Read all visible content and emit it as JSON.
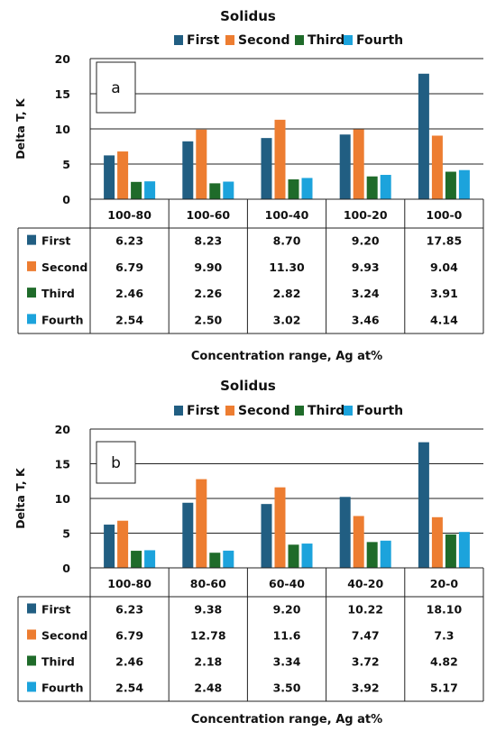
{
  "colors": {
    "First": "#215e82",
    "Second": "#ed7d31",
    "Third": "#1f6b2a",
    "Fourth": "#1ca3dc"
  },
  "chart_data": [
    {
      "type": "bar",
      "panel": "a",
      "title": "Solidus",
      "ylabel": "Delta T, K",
      "xlabel": "Concentration range, Ag at%",
      "ylim": [
        0,
        20
      ],
      "yticks": [
        0,
        5,
        10,
        15,
        20
      ],
      "grid": true,
      "legend": "top",
      "categories": [
        "100-80",
        "100-60",
        "100-40",
        "100-20",
        "100-0"
      ],
      "series": [
        {
          "name": "First",
          "values": [
            6.23,
            8.23,
            8.7,
            9.2,
            17.85
          ],
          "labels": [
            "6.23",
            "8.23",
            "8.70",
            "9.20",
            "17.85"
          ]
        },
        {
          "name": "Second",
          "values": [
            6.79,
            9.9,
            11.3,
            9.93,
            9.04
          ],
          "labels": [
            "6.79",
            "9.90",
            "11.30",
            "9.93",
            "9.04"
          ]
        },
        {
          "name": "Third",
          "values": [
            2.46,
            2.26,
            2.82,
            3.24,
            3.91
          ],
          "labels": [
            "2.46",
            "2.26",
            "2.82",
            "3.24",
            "3.91"
          ]
        },
        {
          "name": "Fourth",
          "values": [
            2.54,
            2.5,
            3.02,
            3.46,
            4.14
          ],
          "labels": [
            "2.54",
            "2.50",
            "3.02",
            "3.46",
            "4.14"
          ]
        }
      ]
    },
    {
      "type": "bar",
      "panel": "b",
      "title": "Solidus",
      "ylabel": "Delta T, K",
      "xlabel": "Concentration range, Ag at%",
      "ylim": [
        0,
        20
      ],
      "yticks": [
        0,
        5,
        10,
        15,
        20
      ],
      "grid": true,
      "legend": "top",
      "categories": [
        "100-80",
        "80-60",
        "60-40",
        "40-20",
        "20-0"
      ],
      "series": [
        {
          "name": "First",
          "values": [
            6.23,
            9.38,
            9.2,
            10.22,
            18.1
          ],
          "labels": [
            "6.23",
            "9.38",
            "9.20",
            "10.22",
            "18.10"
          ]
        },
        {
          "name": "Second",
          "values": [
            6.79,
            12.78,
            11.6,
            7.47,
            7.3
          ],
          "labels": [
            "6.79",
            "12.78",
            "11.6",
            "7.47",
            "7.3"
          ]
        },
        {
          "name": "Third",
          "values": [
            2.46,
            2.18,
            3.34,
            3.72,
            4.82
          ],
          "labels": [
            "2.46",
            "2.18",
            "3.34",
            "3.72",
            "4.82"
          ]
        },
        {
          "name": "Fourth",
          "values": [
            2.54,
            2.48,
            3.5,
            3.92,
            5.17
          ],
          "labels": [
            "2.54",
            "2.48",
            "3.50",
            "3.92",
            "5.17"
          ]
        }
      ]
    }
  ]
}
